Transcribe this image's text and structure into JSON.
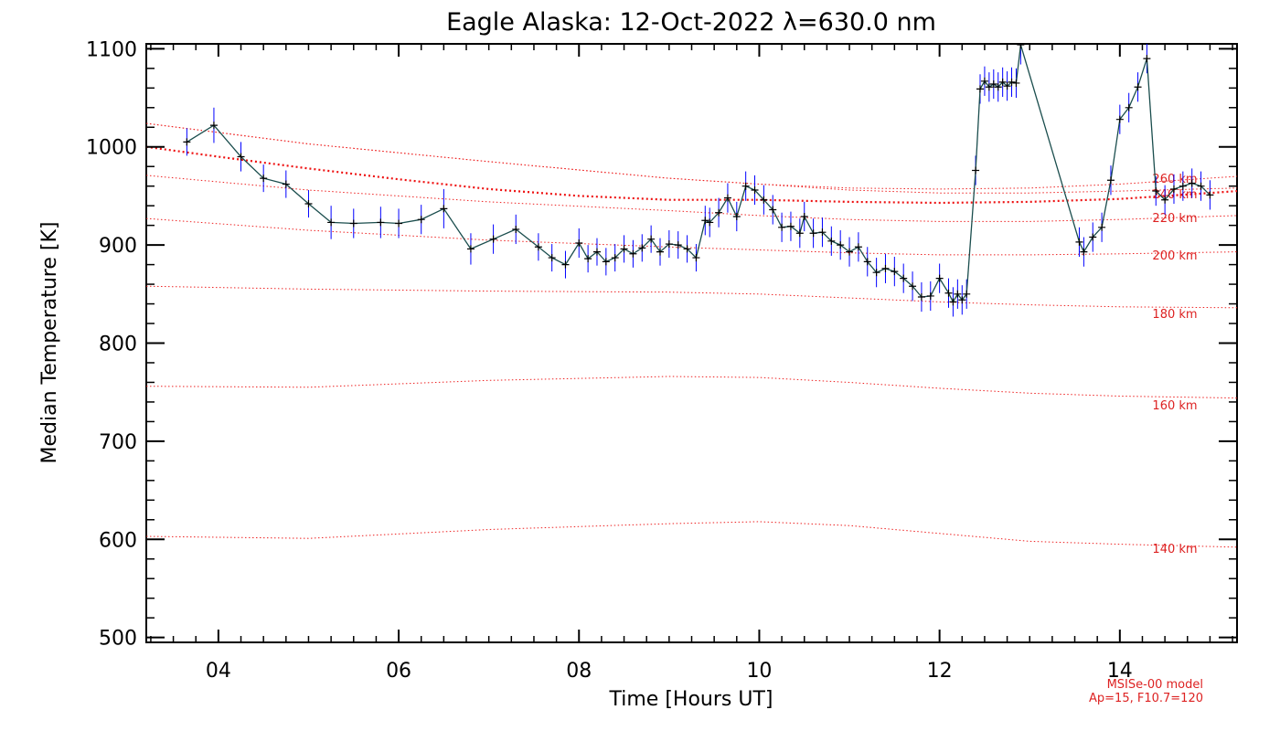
{
  "chart_data": {
    "type": "line",
    "title": "Eagle Alaska: 12-Oct-2022 λ=630.0 nm",
    "xlabel": "Time [Hours UT]",
    "ylabel": "Median Temperature [K]",
    "xlim": [
      3.2,
      15.3
    ],
    "ylim": [
      495,
      1105
    ],
    "x_ticks": [
      4,
      6,
      8,
      10,
      12,
      14
    ],
    "x_tick_labels": [
      "04",
      "06",
      "08",
      "10",
      "12",
      "14"
    ],
    "y_ticks": [
      500,
      600,
      700,
      800,
      900,
      1000,
      1100
    ],
    "y_tick_labels": [
      "500",
      "600",
      "700",
      "800",
      "900",
      "1000",
      "1100"
    ],
    "grid": false,
    "series": [
      {
        "style": "measured",
        "line_color": "#1a4d4d",
        "errorbar_color": "#0000ff",
        "marker": "+",
        "x": [
          3.65,
          3.95,
          4.25,
          4.5,
          4.75,
          5.0,
          5.25,
          5.5,
          5.8,
          6.0,
          6.25,
          6.5,
          6.8,
          7.05,
          7.3,
          7.55,
          7.7,
          7.85,
          8.0,
          8.1,
          8.2,
          8.3,
          8.4,
          8.5,
          8.6,
          8.7,
          8.8,
          8.9,
          9.0,
          9.1,
          9.2,
          9.3,
          9.4,
          9.45,
          9.55,
          9.65,
          9.75,
          9.85,
          9.95,
          10.05,
          10.15,
          10.25,
          10.35,
          10.45,
          10.5,
          10.6,
          10.7,
          10.8,
          10.9,
          11.0,
          11.1,
          11.2,
          11.3,
          11.4,
          11.5,
          11.6,
          11.7,
          11.8,
          11.9,
          12.0,
          12.1,
          12.15,
          12.2,
          12.25,
          12.3,
          12.4,
          12.45,
          12.5,
          12.55,
          12.6,
          12.65,
          12.7,
          12.75,
          12.8,
          12.85,
          12.9,
          13.55,
          13.6,
          13.7,
          13.8,
          13.9,
          14.0,
          14.1,
          14.2,
          14.3,
          14.4,
          14.5,
          14.6,
          14.7,
          14.8,
          14.9,
          15.0
        ],
        "y": [
          1005,
          1022,
          990,
          968,
          962,
          942,
          923,
          922,
          923,
          922,
          926,
          937,
          896,
          906,
          916,
          898,
          887,
          880,
          902,
          886,
          893,
          883,
          887,
          896,
          891,
          897,
          906,
          893,
          901,
          900,
          896,
          887,
          925,
          923,
          933,
          948,
          929,
          960,
          956,
          946,
          936,
          918,
          919,
          912,
          929,
          912,
          913,
          904,
          900,
          893,
          898,
          883,
          872,
          876,
          873,
          866,
          858,
          847,
          848,
          866,
          851,
          842,
          850,
          844,
          850,
          976,
          1059,
          1067,
          1061,
          1064,
          1061,
          1066,
          1062,
          1066,
          1065,
          1104,
          903,
          893,
          908,
          918,
          966,
          1028,
          1040,
          1061,
          1090,
          955,
          946,
          957,
          960,
          963,
          960,
          951
        ],
        "yerr": [
          14,
          18,
          15,
          14,
          14,
          14,
          17,
          15,
          16,
          15,
          15,
          20,
          16,
          15,
          15,
          14,
          14,
          14,
          15,
          14,
          14,
          14,
          14,
          14,
          14,
          14,
          14,
          14,
          14,
          14,
          14,
          14,
          15,
          15,
          15,
          15,
          15,
          15,
          15,
          15,
          15,
          15,
          15,
          15,
          15,
          15,
          15,
          15,
          15,
          15,
          15,
          15,
          15,
          15,
          15,
          15,
          15,
          15,
          15,
          15,
          15,
          15,
          15,
          15,
          15,
          15,
          15,
          15,
          15,
          15,
          15,
          15,
          15,
          15,
          15,
          20,
          15,
          15,
          15,
          15,
          15,
          15,
          15,
          15,
          15,
          15,
          15,
          15,
          15,
          15,
          15,
          15
        ],
        "gap_spans": [
          [
            12.9,
            13.55
          ],
          [
            14.3,
            14.4
          ]
        ]
      },
      {
        "name": "MSISe-00 model",
        "style": "model-thick",
        "line_color": "#ee1111",
        "x": [
          3.2,
          4,
          5,
          6,
          7,
          8,
          9,
          10,
          11,
          12,
          13,
          14,
          15,
          15.3
        ],
        "y": [
          1000,
          990,
          978,
          967,
          957,
          950,
          946,
          946,
          944,
          943,
          944,
          947,
          953,
          955
        ]
      }
    ],
    "model_altitudes": [
      {
        "label": "140 km",
        "x": [
          3.2,
          5,
          7,
          9,
          10,
          11,
          12,
          13,
          14,
          15.3
        ],
        "y": [
          603,
          601,
          610,
          616,
          618,
          614,
          606,
          598,
          595,
          592
        ]
      },
      {
        "label": "160 km",
        "x": [
          3.2,
          5,
          7,
          9,
          10,
          11,
          12,
          13,
          14,
          15.3
        ],
        "y": [
          756,
          755,
          762,
          766,
          765,
          760,
          754,
          749,
          746,
          744
        ]
      },
      {
        "label": "180 km",
        "x": [
          3.2,
          5,
          7,
          9,
          10,
          11,
          12,
          13,
          14,
          15.3
        ],
        "y": [
          858,
          855,
          853,
          852,
          850,
          846,
          842,
          839,
          837,
          836
        ]
      },
      {
        "label": "200 km",
        "x": [
          3.2,
          5,
          7,
          9,
          10,
          11,
          12,
          13,
          14,
          15.3
        ],
        "y": [
          927,
          915,
          905,
          898,
          895,
          892,
          890,
          890,
          891,
          893
        ]
      },
      {
        "label": "220 km",
        "x": [
          3.2,
          5,
          7,
          9,
          10,
          11,
          12,
          13,
          14,
          15.3
        ],
        "y": [
          971,
          956,
          944,
          935,
          930,
          926,
          924,
          924,
          926,
          930
        ]
      },
      {
        "label": "240 km",
        "x": [
          3.2,
          5,
          7,
          9,
          10,
          11,
          12,
          13,
          14,
          15.3
        ],
        "y": [
          1024,
          1003,
          985,
          968,
          962,
          956,
          953,
          953,
          955,
          958
        ]
      },
      {
        "label": "260 km",
        "x": [
          3.2,
          5,
          7,
          9,
          10,
          11,
          12,
          13,
          14,
          15.3
        ],
        "y": [
          1024,
          1003,
          985,
          968,
          962,
          958,
          957,
          958,
          962,
          970
        ]
      }
    ],
    "annotations": [
      "MSISe-00 model",
      "Ap=15, F10.7=120"
    ]
  }
}
